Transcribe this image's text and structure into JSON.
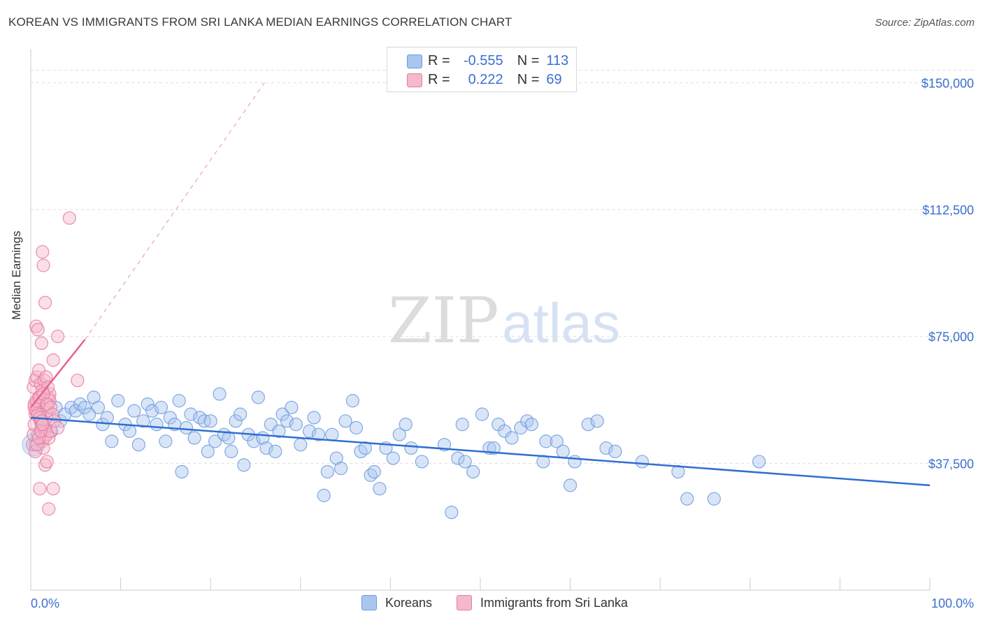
{
  "header": {
    "title": "KOREAN VS IMMIGRANTS FROM SRI LANKA MEDIAN EARNINGS CORRELATION CHART",
    "source": "Source: ZipAtlas.com"
  },
  "watermark": {
    "zip": "ZIP",
    "atlas": "atlas"
  },
  "stats": {
    "r_label": "R =",
    "n_label": "N =",
    "rows": [
      {
        "r": "-0.555",
        "n": "113",
        "color": "#aac6ee"
      },
      {
        "r": "0.222",
        "n": "69",
        "color": "#f5b8cc"
      }
    ]
  },
  "legend": {
    "items": [
      {
        "label": "Koreans",
        "color": "#aac6ee"
      },
      {
        "label": "Immigrants from Sri Lanka",
        "color": "#f5b8cc"
      }
    ]
  },
  "chart_data": {
    "type": "scatter",
    "title": "KOREAN VS IMMIGRANTS FROM SRI LANKA MEDIAN EARNINGS CORRELATION CHART",
    "xlabel": "",
    "ylabel": "Median Earnings",
    "xlim": [
      0,
      100
    ],
    "ylim": [
      0,
      160000
    ],
    "x_tick_labels": [
      "0.0%",
      "100.0%"
    ],
    "y_ticks": [
      37500,
      75000,
      112500,
      150000
    ],
    "y_tick_labels": [
      "$37,500",
      "$75,000",
      "$112,500",
      "$150,000"
    ],
    "grid": true,
    "legend_position": "bottom-center",
    "series": [
      {
        "name": "Koreans",
        "color": "#6a9be0",
        "fill": "#aac6ee",
        "trend": {
          "x": [
            0,
            100
          ],
          "y": [
            51000,
            31000
          ],
          "style": "solid",
          "color": "#2f6fd0"
        },
        "points": [
          [
            0.5,
            43000
          ],
          [
            0.8,
            46000
          ],
          [
            1.2,
            49000
          ],
          [
            1.5,
            48000
          ],
          [
            1.8,
            51000
          ],
          [
            2.3,
            47000
          ],
          [
            2.8,
            54000
          ],
          [
            3.3,
            50000
          ],
          [
            3.8,
            52000
          ],
          [
            4.5,
            54000
          ],
          [
            5.0,
            53000
          ],
          [
            5.5,
            55000
          ],
          [
            6.0,
            54000
          ],
          [
            6.5,
            52000
          ],
          [
            7.0,
            57000
          ],
          [
            7.5,
            54000
          ],
          [
            8.0,
            49000
          ],
          [
            8.5,
            51000
          ],
          [
            9.0,
            44000
          ],
          [
            9.7,
            56000
          ],
          [
            10.5,
            49000
          ],
          [
            11.0,
            47000
          ],
          [
            11.5,
            53000
          ],
          [
            12.0,
            43000
          ],
          [
            12.5,
            50000
          ],
          [
            13.0,
            55000
          ],
          [
            13.5,
            53000
          ],
          [
            14.0,
            49000
          ],
          [
            14.5,
            54000
          ],
          [
            15.0,
            44000
          ],
          [
            15.5,
            51000
          ],
          [
            16.0,
            49000
          ],
          [
            16.5,
            56000
          ],
          [
            16.8,
            35000
          ],
          [
            17.3,
            48000
          ],
          [
            17.8,
            52000
          ],
          [
            18.2,
            45000
          ],
          [
            18.8,
            51000
          ],
          [
            19.3,
            50000
          ],
          [
            19.7,
            41000
          ],
          [
            20.0,
            50000
          ],
          [
            20.5,
            44000
          ],
          [
            21.0,
            58000
          ],
          [
            21.5,
            46000
          ],
          [
            22.0,
            45000
          ],
          [
            22.3,
            41000
          ],
          [
            22.8,
            50000
          ],
          [
            23.3,
            52000
          ],
          [
            23.7,
            37000
          ],
          [
            24.2,
            46000
          ],
          [
            24.8,
            44000
          ],
          [
            25.3,
            57000
          ],
          [
            25.8,
            45000
          ],
          [
            26.2,
            42000
          ],
          [
            26.7,
            49000
          ],
          [
            27.2,
            41000
          ],
          [
            27.6,
            47000
          ],
          [
            28.0,
            52000
          ],
          [
            28.5,
            50000
          ],
          [
            29.0,
            54000
          ],
          [
            29.5,
            49000
          ],
          [
            30.0,
            43000
          ],
          [
            31.0,
            47000
          ],
          [
            31.5,
            51000
          ],
          [
            32.0,
            46000
          ],
          [
            32.6,
            28000
          ],
          [
            33.0,
            35000
          ],
          [
            33.5,
            46000
          ],
          [
            34.0,
            39000
          ],
          [
            34.5,
            36000
          ],
          [
            35.0,
            50000
          ],
          [
            35.8,
            56000
          ],
          [
            36.2,
            48000
          ],
          [
            36.7,
            41000
          ],
          [
            37.2,
            42000
          ],
          [
            37.8,
            34000
          ],
          [
            38.2,
            35000
          ],
          [
            38.8,
            30000
          ],
          [
            39.5,
            42000
          ],
          [
            40.3,
            39000
          ],
          [
            41.0,
            46000
          ],
          [
            41.7,
            49000
          ],
          [
            42.3,
            42000
          ],
          [
            43.5,
            38000
          ],
          [
            46.0,
            43000
          ],
          [
            46.8,
            23000
          ],
          [
            47.5,
            39000
          ],
          [
            48.0,
            49000
          ],
          [
            48.3,
            38000
          ],
          [
            49.2,
            35000
          ],
          [
            50.2,
            52000
          ],
          [
            51.0,
            42000
          ],
          [
            51.5,
            42000
          ],
          [
            52.0,
            49000
          ],
          [
            52.7,
            47000
          ],
          [
            53.5,
            45000
          ],
          [
            54.5,
            48000
          ],
          [
            55.2,
            50000
          ],
          [
            55.7,
            49000
          ],
          [
            57.0,
            38000
          ],
          [
            57.3,
            44000
          ],
          [
            58.5,
            44000
          ],
          [
            59.2,
            41000
          ],
          [
            60.0,
            31000
          ],
          [
            60.5,
            38000
          ],
          [
            62.0,
            49000
          ],
          [
            63.0,
            50000
          ],
          [
            64.0,
            42000
          ],
          [
            65.0,
            41000
          ],
          [
            68.0,
            38000
          ],
          [
            72.0,
            35000
          ],
          [
            73.0,
            27000
          ],
          [
            76.0,
            27000
          ],
          [
            81.0,
            38000
          ]
        ]
      },
      {
        "name": "Immigrants from Sri Lanka",
        "color": "#e87aa0",
        "fill": "#f5b8cc",
        "trend": {
          "x": [
            0,
            6
          ],
          "y": [
            54000,
            74000
          ],
          "style": "solid",
          "extended_to": [
            26,
            150000
          ],
          "color": "#e8628d"
        },
        "points": [
          [
            0.2,
            43000
          ],
          [
            0.3,
            46000
          ],
          [
            0.4,
            49000
          ],
          [
            0.5,
            52000
          ],
          [
            0.6,
            53000
          ],
          [
            0.7,
            55000
          ],
          [
            0.8,
            56000
          ],
          [
            0.9,
            57000
          ],
          [
            1.0,
            54000
          ],
          [
            1.1,
            50000
          ],
          [
            1.2,
            47000
          ],
          [
            1.3,
            44000
          ],
          [
            1.4,
            42000
          ],
          [
            1.5,
            45000
          ],
          [
            1.6,
            48000
          ],
          [
            1.7,
            51000
          ],
          [
            1.8,
            53000
          ],
          [
            1.9,
            55000
          ],
          [
            2.0,
            57000
          ],
          [
            2.1,
            58000
          ],
          [
            0.3,
            60000
          ],
          [
            0.5,
            62000
          ],
          [
            0.7,
            63000
          ],
          [
            0.9,
            65000
          ],
          [
            1.1,
            61000
          ],
          [
            1.3,
            59000
          ],
          [
            1.5,
            62000
          ],
          [
            1.7,
            63000
          ],
          [
            1.9,
            60000
          ],
          [
            2.1,
            56000
          ],
          [
            0.4,
            54000
          ],
          [
            0.6,
            53000
          ],
          [
            0.8,
            52000
          ],
          [
            1.0,
            51000
          ],
          [
            1.2,
            50000
          ],
          [
            1.4,
            49000
          ],
          [
            1.6,
            47000
          ],
          [
            1.8,
            46000
          ],
          [
            2.0,
            45000
          ],
          [
            2.2,
            47000
          ],
          [
            0.6,
            78000
          ],
          [
            0.8,
            77000
          ],
          [
            1.2,
            73000
          ],
          [
            1.3,
            100000
          ],
          [
            1.4,
            96000
          ],
          [
            1.6,
            85000
          ],
          [
            2.5,
            68000
          ],
          [
            3.0,
            75000
          ],
          [
            4.3,
            110000
          ],
          [
            5.2,
            62000
          ],
          [
            1.0,
            30000
          ],
          [
            1.6,
            37000
          ],
          [
            1.8,
            38000
          ],
          [
            2.0,
            24000
          ],
          [
            2.5,
            30000
          ],
          [
            0.5,
            41000
          ],
          [
            0.7,
            43000
          ],
          [
            0.9,
            45000
          ],
          [
            1.1,
            47000
          ],
          [
            1.3,
            49000
          ],
          [
            0.4,
            55000
          ],
          [
            0.6,
            56000
          ],
          [
            1.0,
            57000
          ],
          [
            1.4,
            58000
          ],
          [
            1.8,
            55000
          ],
          [
            2.2,
            54000
          ],
          [
            2.4,
            52000
          ],
          [
            2.6,
            50000
          ],
          [
            3.0,
            48000
          ]
        ]
      }
    ]
  }
}
